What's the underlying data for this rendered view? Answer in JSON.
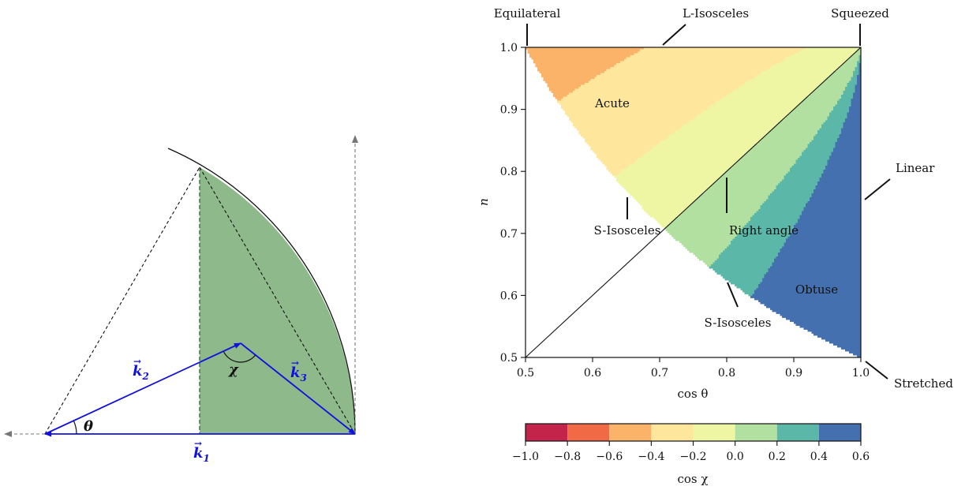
{
  "colors": {
    "vector": "#1010e0",
    "region_fill": "#8db98b",
    "region_edge": "#2e6b2e",
    "arrow_gray": "#777777",
    "band_colors": [
      "#c2244a",
      "#ef6a45",
      "#fbb369",
      "#fee79d",
      "#eef6a4",
      "#b2e0a0",
      "#5bb7a8",
      "#4470b0"
    ]
  },
  "triangle_diagram": {
    "k1_label": "k",
    "k1_sub": "1",
    "k2_label": "k",
    "k2_sub": "2",
    "k3_label": "k",
    "k3_sub": "3",
    "theta_label": "θ",
    "chi_label": "χ",
    "vector_arrow_symbol": "→"
  },
  "chart_data": {
    "type": "heatmap",
    "xlabel": "cos θ",
    "ylabel": "n",
    "xlim": [
      0.5,
      1.0
    ],
    "ylim": [
      0.5,
      1.0
    ],
    "x_ticks": [
      "0.5",
      "0.6",
      "0.7",
      "0.8",
      "0.9",
      "1.0"
    ],
    "y_ticks": [
      "0.5",
      "0.6",
      "0.7",
      "0.8",
      "0.9",
      "1.0"
    ],
    "colorbar": {
      "label": "cos χ",
      "range": [
        -1.0,
        0.6
      ],
      "boundaries": [
        -1.0,
        -0.8,
        -0.6,
        -0.4,
        -0.2,
        0.0,
        0.2,
        0.4,
        0.6
      ],
      "tick_labels": [
        "−1.0",
        "−0.8",
        "−0.6",
        "−0.4",
        "−0.2",
        "0.0",
        "0.2",
        "0.4",
        "0.6"
      ]
    },
    "annotations": {
      "equilateral": "Equilateral",
      "l_isosceles": "L-Isosceles",
      "squeezed": "Squeezed",
      "acute": "Acute",
      "linear": "Linear",
      "s_isosceles_upper": "S-Isosceles",
      "right_angle": "Right angle",
      "obtuse": "Obtuse",
      "s_isosceles_lower": "S-Isosceles",
      "stretched": "Stretched"
    }
  }
}
